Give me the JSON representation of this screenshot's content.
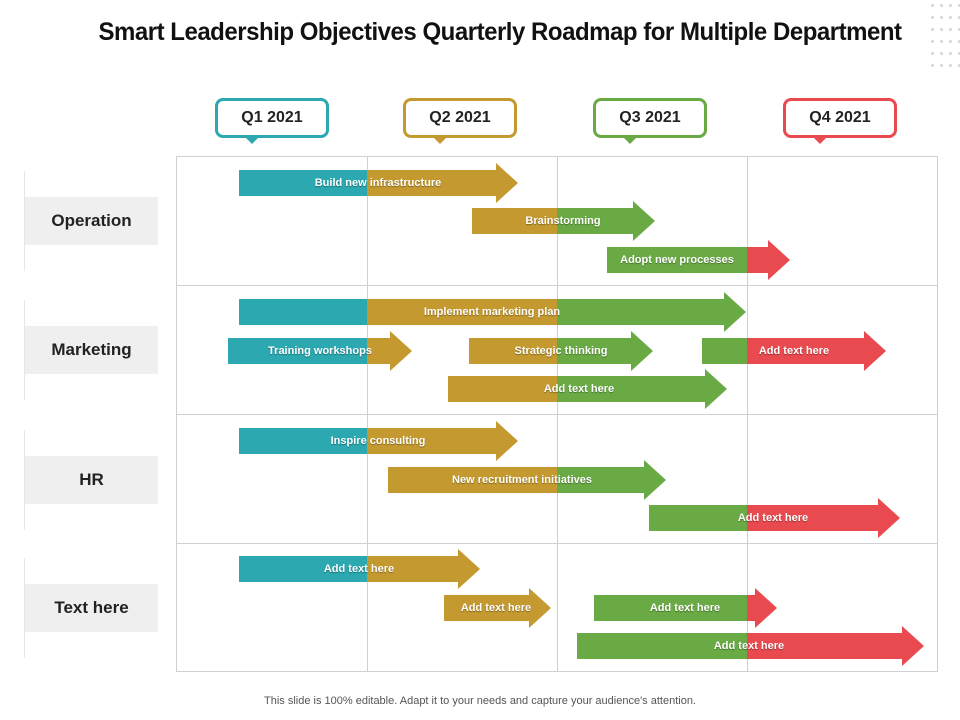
{
  "title": "Smart Leadership Objectives Quarterly Roadmap for Multiple Department",
  "footer": "This slide is 100% editable. Adapt it to your needs and capture your audience's attention.",
  "colors": {
    "teal": "#2ba8b0",
    "gold": "#c49a30",
    "green": "#6aaa45",
    "red": "#e84a4f"
  },
  "quarters": [
    {
      "label": "Q1 2021",
      "color": "#2ba8b0"
    },
    {
      "label": "Q2 2021",
      "color": "#c49a30"
    },
    {
      "label": "Q3 2021",
      "color": "#6aaa45"
    },
    {
      "label": "Q4 2021",
      "color": "#e84a4f"
    }
  ],
  "departments": [
    {
      "label": "Operation"
    },
    {
      "label": "Marketing"
    },
    {
      "label": "HR"
    },
    {
      "label": "Text here"
    }
  ],
  "tasks": [
    {
      "label": "Build new infrastructure"
    },
    {
      "label": "Brainstorming"
    },
    {
      "label": "Adopt new processes"
    },
    {
      "label": "Implement marketing plan"
    },
    {
      "label": "Training workshops"
    },
    {
      "label": "Strategic thinking"
    },
    {
      "label": "Add text here"
    },
    {
      "label": "Add text here"
    },
    {
      "label": "Inspire consulting"
    },
    {
      "label": "New recruitment initiatives"
    },
    {
      "label": "Add text here"
    },
    {
      "label": "Add text here"
    },
    {
      "label": "Add text here"
    },
    {
      "label": "Add text here"
    },
    {
      "label": "Add text here"
    }
  ]
}
